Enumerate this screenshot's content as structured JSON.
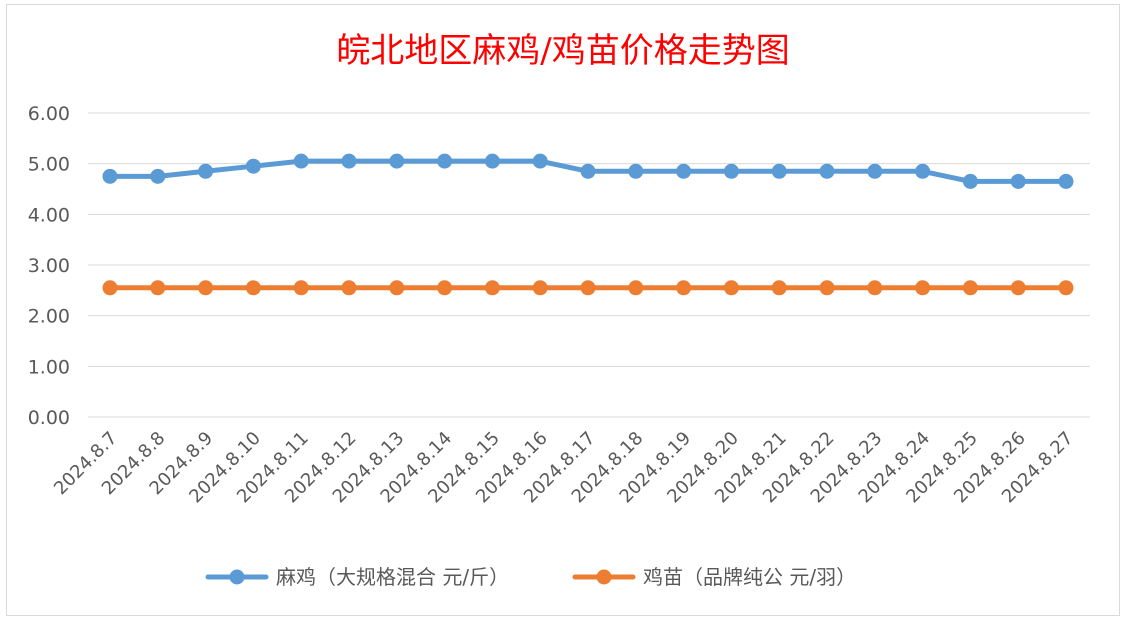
{
  "chart_data": {
    "type": "line",
    "title": "皖北地区麻鸡/鸡苗价格走势图",
    "xlabel": "",
    "ylabel": "",
    "ylim": [
      0,
      6
    ],
    "yticks": [
      "0.00",
      "1.00",
      "2.00",
      "3.00",
      "4.00",
      "5.00",
      "6.00"
    ],
    "grid": true,
    "legend_position": "bottom",
    "categories": [
      "2024.8.7",
      "2024.8.8",
      "2024.8.9",
      "2024.8.10",
      "2024.8.11",
      "2024.8.12",
      "2024.8.13",
      "2024.8.14",
      "2024.8.15",
      "2024.8.16",
      "2024.8.17",
      "2024.8.18",
      "2024.8.19",
      "2024.8.20",
      "2024.8.21",
      "2024.8.22",
      "2024.8.23",
      "2024.8.24",
      "2024.8.25",
      "2024.8.26",
      "2024.8.27"
    ],
    "series": [
      {
        "name": "麻鸡（大规格混合 元/斤）",
        "color": "#5b9bd5",
        "values": [
          4.75,
          4.75,
          4.85,
          4.95,
          5.05,
          5.05,
          5.05,
          5.05,
          5.05,
          5.05,
          4.85,
          4.85,
          4.85,
          4.85,
          4.85,
          4.85,
          4.85,
          4.85,
          4.65,
          4.65,
          4.65
        ]
      },
      {
        "name": "鸡苗（品牌纯公 元/羽）",
        "color": "#ed7d31",
        "values": [
          2.55,
          2.55,
          2.55,
          2.55,
          2.55,
          2.55,
          2.55,
          2.55,
          2.55,
          2.55,
          2.55,
          2.55,
          2.55,
          2.55,
          2.55,
          2.55,
          2.55,
          2.55,
          2.55,
          2.55,
          2.55
        ]
      }
    ]
  }
}
